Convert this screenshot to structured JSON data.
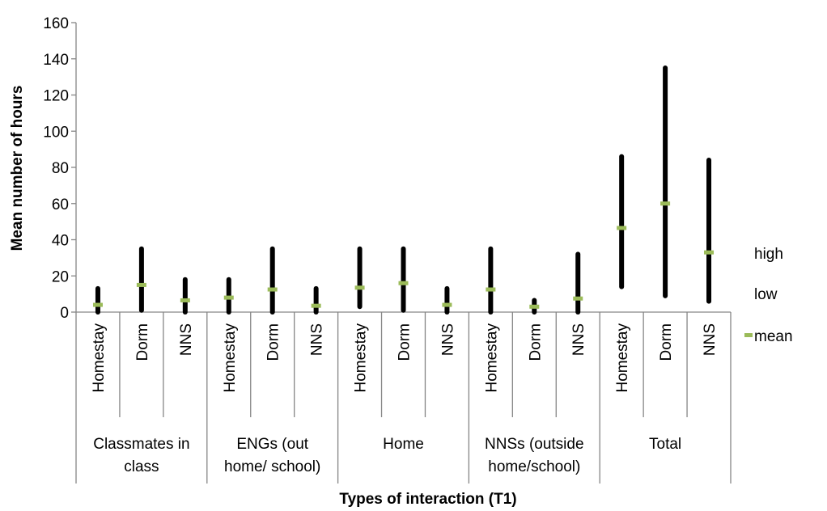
{
  "chart_data": {
    "type": "stock",
    "ylabel": "Mean number of hours",
    "xlabel": "Types of interaction (T1)",
    "ylim": [
      0,
      160
    ],
    "yticks": [
      "0",
      "20",
      "40",
      "60",
      "80",
      "100",
      "120",
      "140",
      "160"
    ],
    "groups": [
      {
        "label": [
          "Classmates in",
          "class"
        ],
        "categories": [
          "Homestay",
          "Dorm",
          "NNS"
        ]
      },
      {
        "label": [
          "ENGs (out",
          "home/ school)"
        ],
        "categories": [
          "Homestay",
          "Dorm",
          "NNS"
        ]
      },
      {
        "label": [
          "Home"
        ],
        "categories": [
          "Homestay",
          "Dorm",
          "NNS"
        ]
      },
      {
        "label": [
          "NNSs (outside",
          "home/school)"
        ],
        "categories": [
          "Homestay",
          "Dorm",
          "NNS"
        ]
      },
      {
        "label": [
          "Total"
        ],
        "categories": [
          "Homestay",
          "Dorm",
          "NNS"
        ]
      }
    ],
    "series": [
      {
        "name": "high",
        "values": [
          13,
          35,
          18,
          18,
          35,
          13,
          35,
          35,
          13,
          35,
          6.5,
          32,
          86,
          135,
          84
        ]
      },
      {
        "name": "low",
        "values": [
          0,
          1,
          0,
          0,
          0,
          0,
          3,
          1,
          0,
          0,
          0,
          0,
          14,
          9,
          6
        ]
      },
      {
        "name": "mean",
        "values": [
          4,
          15,
          6.5,
          8,
          12.5,
          3.5,
          13.5,
          16,
          4,
          12.5,
          3,
          7.5,
          46.5,
          60,
          33
        ]
      }
    ],
    "legend": {
      "position": "right",
      "entries": [
        "high",
        "low",
        "mean"
      ]
    },
    "colors": {
      "range_bar": "#000000",
      "mean_marker": "#9BBB59",
      "axis": "#868686"
    },
    "grid": false
  }
}
